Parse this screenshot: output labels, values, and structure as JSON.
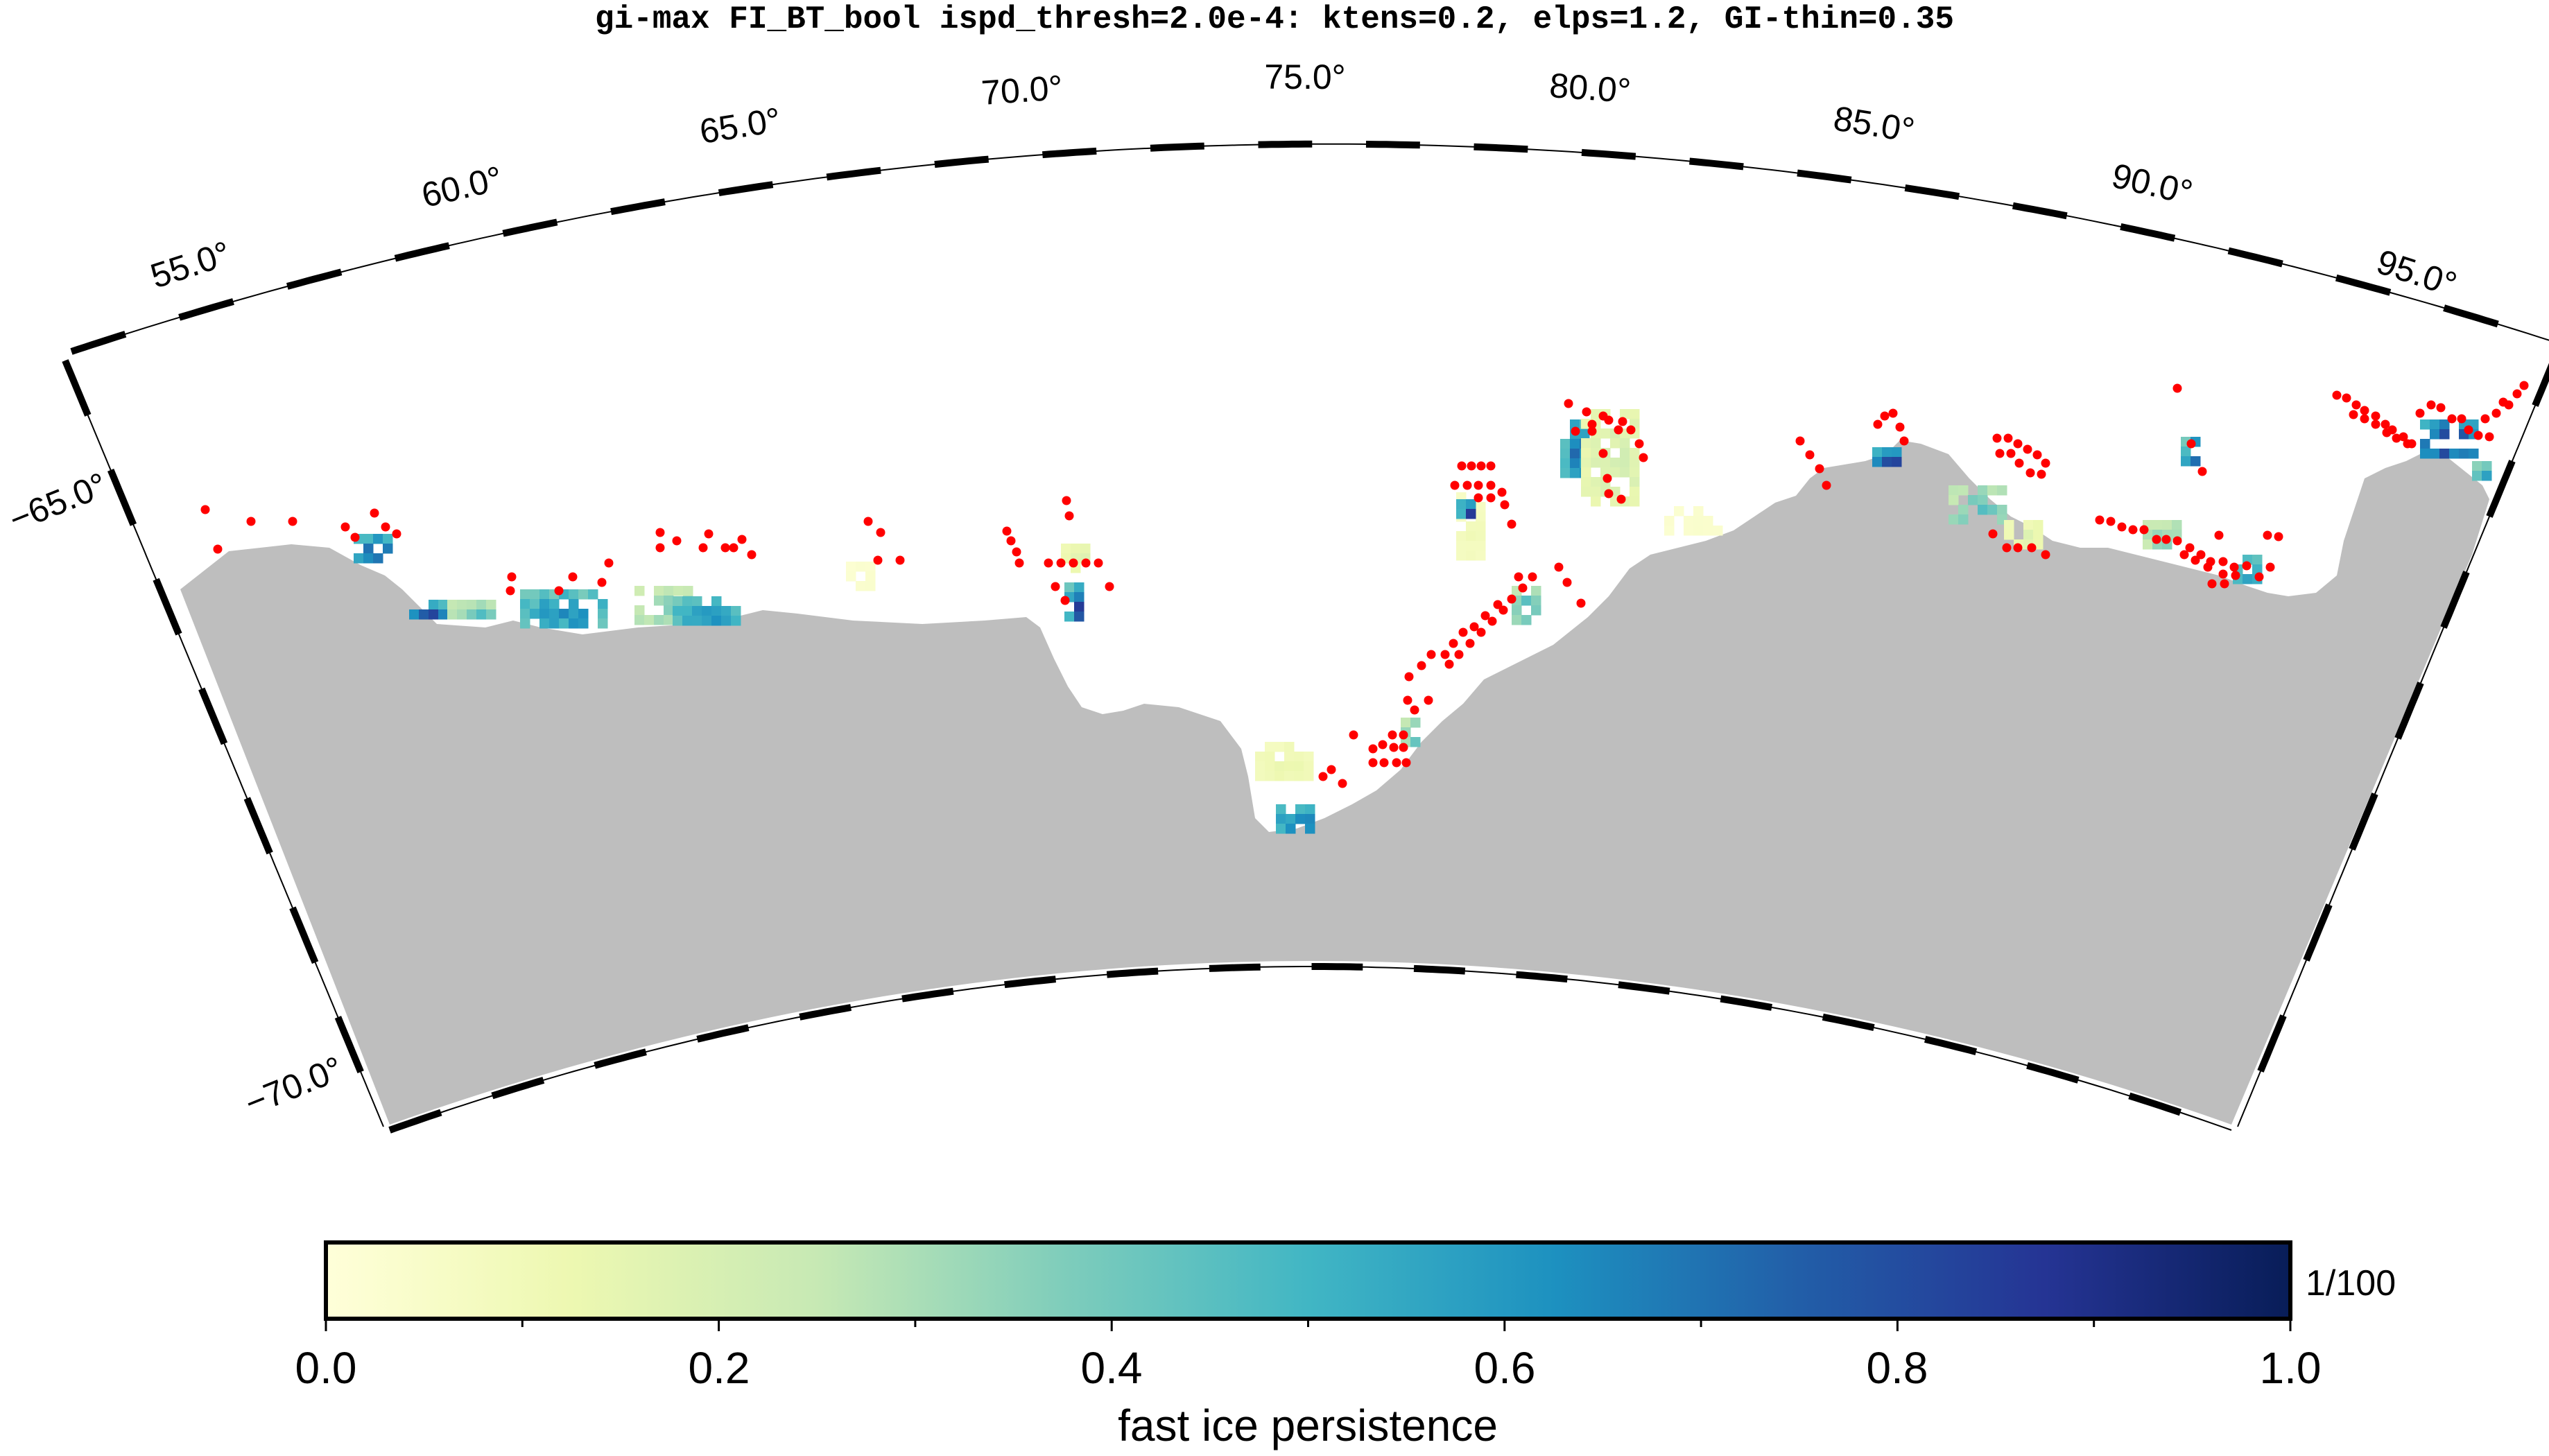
{
  "title": "gi-max FI_BT_bool ispd_thresh=2.0e-4: ktens=0.2, elps=1.2, GI-thin=0.35",
  "map": {
    "projection": "stereographic-south",
    "lon_range": [
      52.0,
      97.5
    ],
    "lat_range": [
      -70.5,
      -64.3
    ],
    "lon_labels": [
      "55.0°",
      "60.0°",
      "65.0°",
      "70.0°",
      "75.0°",
      "80.0°",
      "85.0°",
      "90.0°",
      "95.0°"
    ],
    "lat_labels": [
      "−65.0°",
      "−70.0°"
    ],
    "land_color": "#bebebe",
    "ocean_color": "#ffffff",
    "marker_color": "#ff0000",
    "marker_meaning": "grounded iceberg points"
  },
  "colorbar": {
    "label": "fast ice persistence",
    "unit": "1/100",
    "ticks": [
      "0.0",
      "0.2",
      "0.4",
      "0.6",
      "0.8",
      "1.0"
    ],
    "colors": [
      "#ffffd9",
      "#edf8b1",
      "#c7e9b4",
      "#7fcdbb",
      "#41b6c4",
      "#1d91c0",
      "#225ea8",
      "#253494",
      "#081d58"
    ]
  }
}
